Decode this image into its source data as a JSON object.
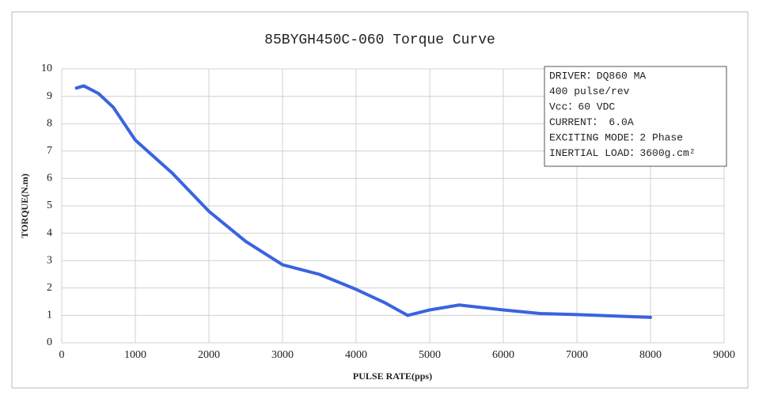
{
  "chart_data": {
    "type": "line",
    "title": "85BYGH450C-060 Torque Curve",
    "x_label": "PULSE  RATE(pps)",
    "y_label": "TORQUE(N.m)",
    "annotation_lines": [
      "DRIVER：DQ860 MA",
      "400  pulse/rev",
      "Vcc：60 VDC",
      "CURRENT： 6.0A",
      "EXCITING MODE：2 Phase",
      "INERTIAL LOAD：3600g.cm²"
    ],
    "xlim": [
      0,
      9000
    ],
    "xticks": [
      0,
      1000,
      2000,
      3000,
      4000,
      5000,
      6000,
      7000,
      8000,
      9000
    ],
    "ylim": [
      0,
      10
    ],
    "yticks": [
      0,
      1,
      2,
      3,
      4,
      5,
      6,
      7,
      8,
      9,
      10
    ],
    "grid": true,
    "series": [
      {
        "color": "#3a63e0",
        "x": [
          200,
          300,
          500,
          700,
          1000,
          1500,
          2000,
          2500,
          3000,
          3500,
          4000,
          4400,
          4700,
          5000,
          5400,
          6000,
          6500,
          7000,
          7500,
          8000
        ],
        "values": [
          9.3,
          9.38,
          9.1,
          8.6,
          7.4,
          6.2,
          4.8,
          3.7,
          2.85,
          2.5,
          1.95,
          1.45,
          1.0,
          1.2,
          1.38,
          1.2,
          1.07,
          1.03,
          0.98,
          0.93
        ]
      }
    ]
  }
}
